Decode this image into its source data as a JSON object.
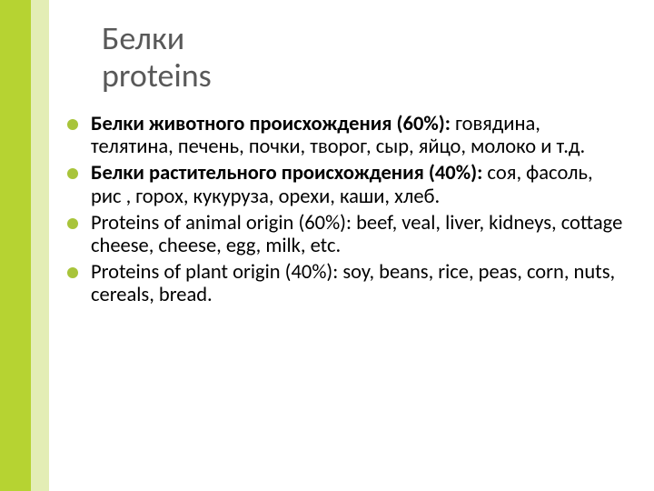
{
  "colors": {
    "stripe_outer": "#b6d332",
    "stripe_inner": "#e3edb5",
    "bullet": "#a8c43a",
    "heading": "#595959",
    "body_text": "#000000",
    "background": "#ffffff"
  },
  "heading": {
    "line1": "Белки",
    "line2": "proteins",
    "fontsize": 36
  },
  "body": {
    "fontsize": 22.5,
    "items": [
      {
        "lead": "Белки животного происхождения (60%): ",
        "rest": "говядина, телятина, печень, почки, творог, сыр, яйцо, молоко и т.д."
      },
      {
        "lead": "Белки растительного происхождения (40%): ",
        "rest": "соя, фасоль, рис , горох, кукуруза, орехи, каши, хлеб."
      },
      {
        "lead": "",
        "rest": "Proteins of animal origin (60%): beef, veal, liver, kidneys, cottage cheese, cheese, egg, milk, etc."
      },
      {
        "lead": "",
        "rest": "Proteins of plant origin (40%): soy, beans, rice, peas, corn, nuts, cereals, bread."
      }
    ]
  }
}
